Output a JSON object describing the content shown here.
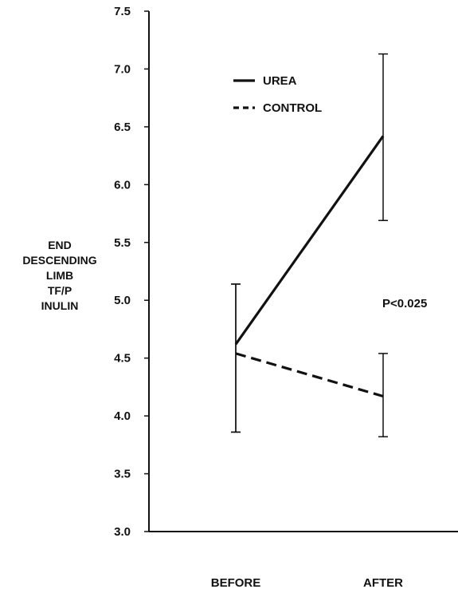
{
  "chart_data": {
    "type": "line",
    "categories": [
      "BEFORE",
      "AFTER"
    ],
    "ylabel_lines": [
      "END",
      "DESCENDING",
      "LIMB",
      "TF/P",
      "INULIN"
    ],
    "ylim": [
      3.0,
      7.5
    ],
    "yticks": [
      "3.0",
      "3.5",
      "4.0",
      "4.5",
      "5.0",
      "5.5",
      "6.0",
      "6.5",
      "7.0",
      "7.5"
    ],
    "grid": false,
    "legend_position": "top-left",
    "annotation": "P<0.025",
    "series": [
      {
        "name": "UREA",
        "style": "solid",
        "values": [
          4.62,
          6.42
        ],
        "error_low": [
          3.86,
          5.69
        ],
        "error_high": [
          5.14,
          7.13
        ]
      },
      {
        "name": "CONTROL",
        "style": "dashed",
        "values": [
          4.54,
          4.17
        ],
        "error_low": [
          3.86,
          3.82
        ],
        "error_high": [
          5.14,
          4.54
        ]
      }
    ]
  }
}
